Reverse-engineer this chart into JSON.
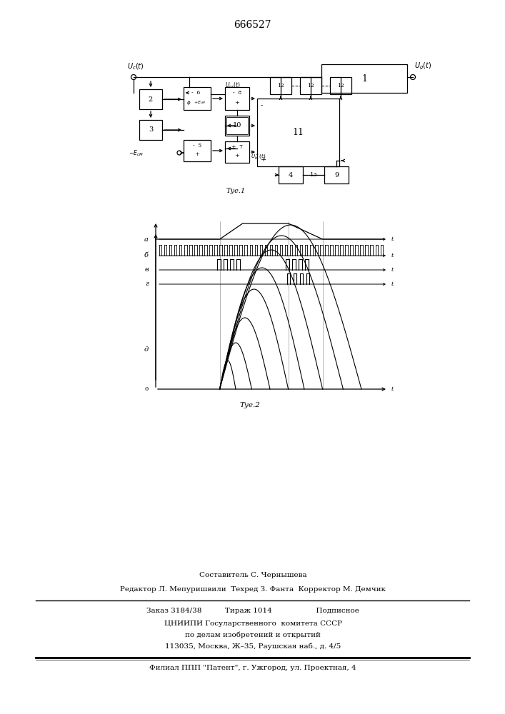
{
  "patent_number": "666527",
  "fig1_caption": "Τуе.1",
  "fig2_caption": "Τуе.2",
  "footer_line1": "Составитель С. Чернышева",
  "footer_line2": "Редактор Л. Мепуришвили  Техред З. Фанта  Корректор М. Демчик",
  "footer_line3": "Заказ 3184/38          Тираж 1014                   Подписное",
  "footer_line4": "ЦНИИПИ Госуларственного  комитета СССР",
  "footer_line5": "по делам изобретений и открытий",
  "footer_line6": "113035, Москва, Ж–35, Раушская наб., д. 4/5",
  "footer_line7": "Филиал ППП \"Патент\", г. Ужгород, ул. Проектная, 4",
  "bg_color": "#ffffff"
}
